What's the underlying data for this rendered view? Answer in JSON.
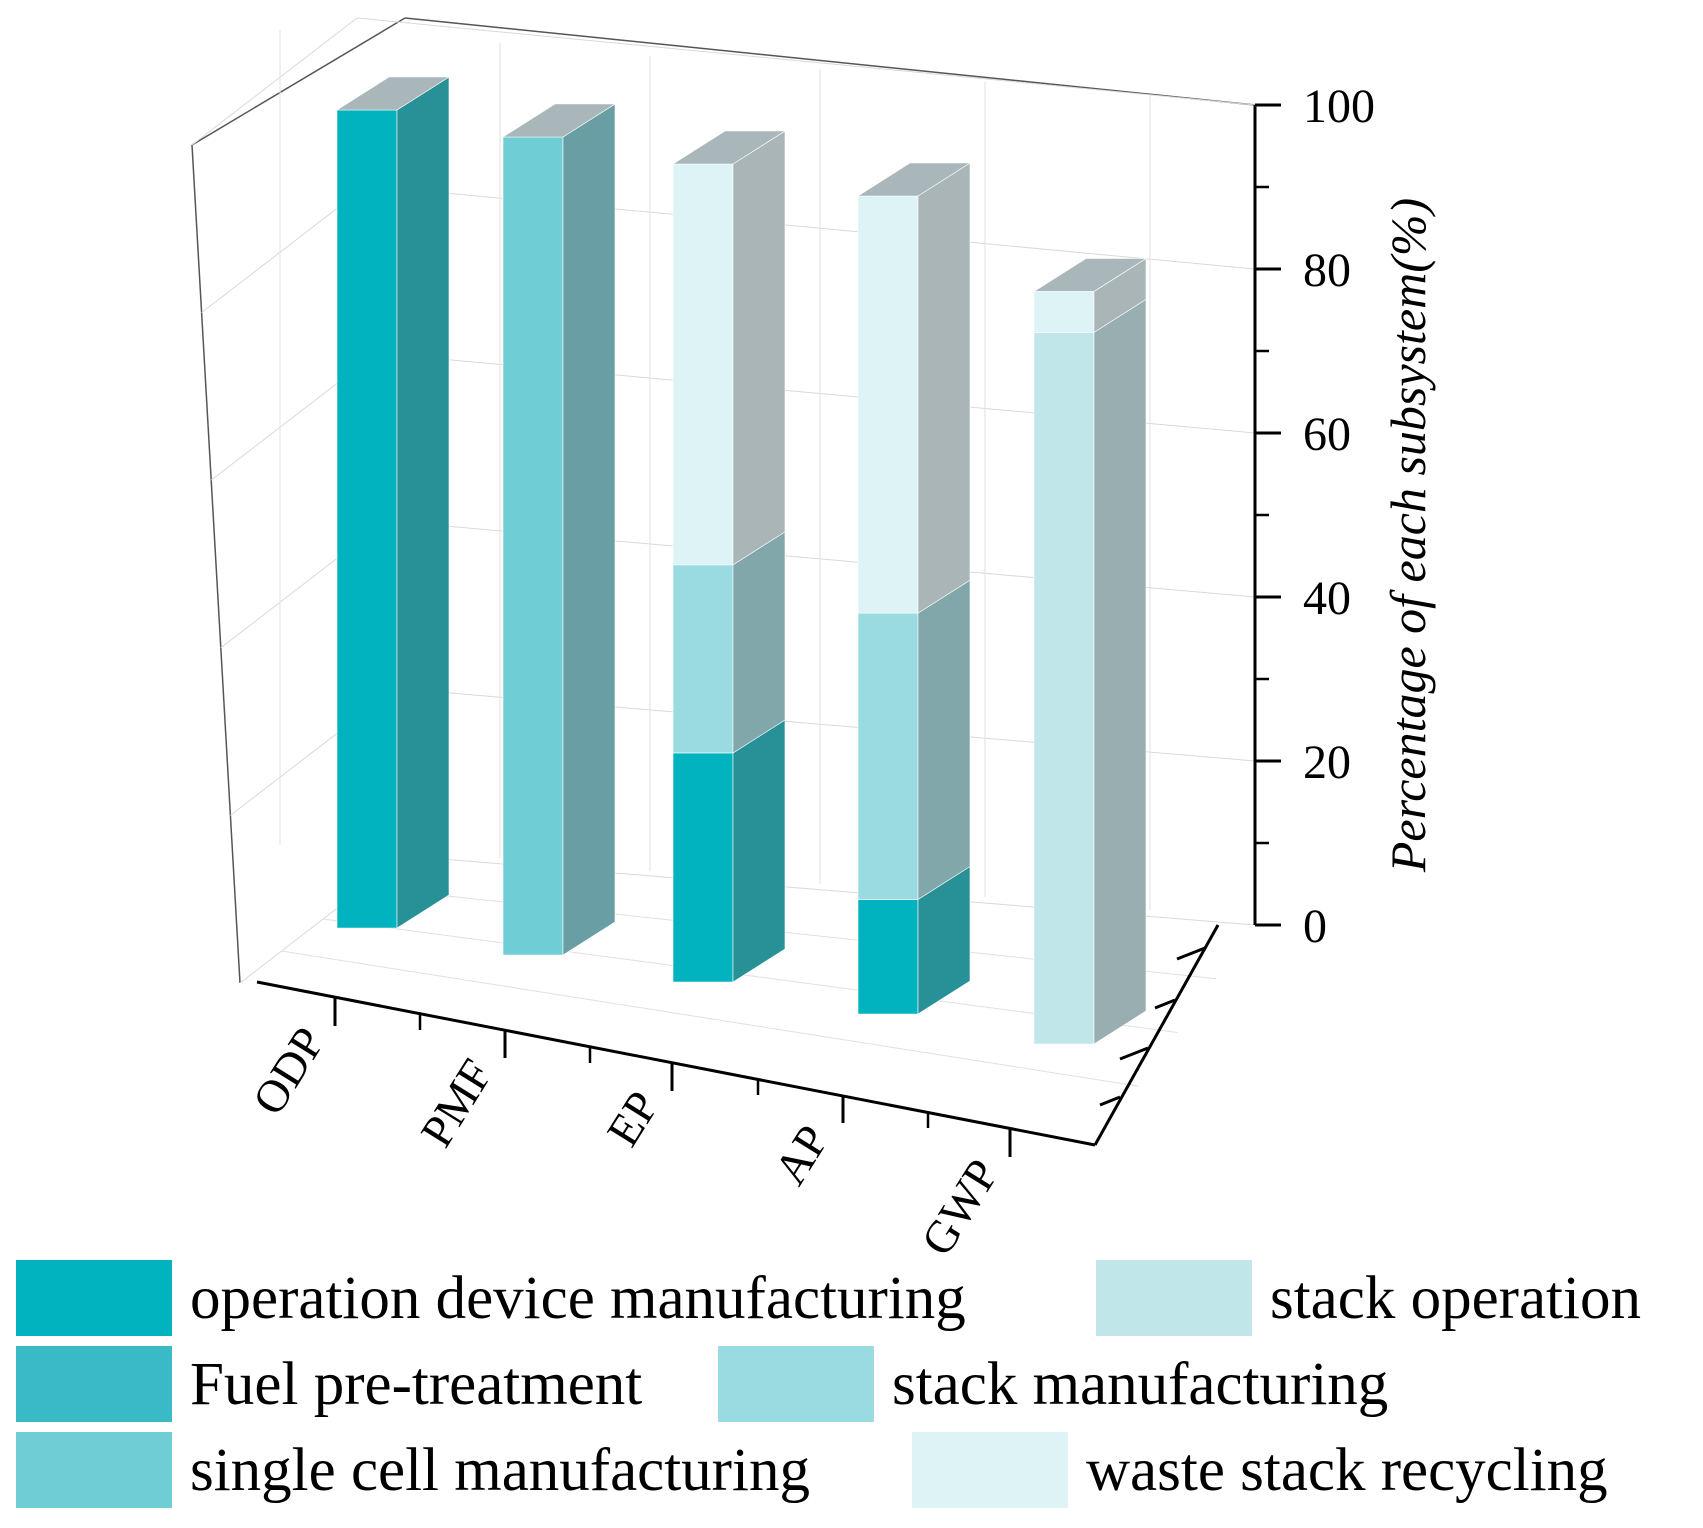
{
  "chart_data": {
    "type": "bar",
    "subtype": "3d-stacked-100-percent",
    "title": "",
    "xlabel": "",
    "ylabel": "Percentage of each subsystem(%)",
    "ylim": [
      0,
      100
    ],
    "yticks": [
      0,
      20,
      40,
      60,
      80,
      100
    ],
    "grid": true,
    "legend_position": "bottom",
    "categories": [
      "ODP",
      "PMF",
      "EP",
      "AP",
      "GWP"
    ],
    "series": [
      {
        "name": "operation device manufacturing",
        "color": "#00b3bf",
        "values": [
          100,
          0,
          28,
          14,
          0
        ]
      },
      {
        "name": "Fuel pre-treatment",
        "color": "#3ab9c6",
        "values": [
          0,
          0,
          0,
          0,
          0
        ]
      },
      {
        "name": "single cell manufacturing",
        "color": "#6fcdd6",
        "values": [
          0,
          100,
          0,
          0,
          0
        ]
      },
      {
        "name": "stack operation",
        "color": "#c0e6ea",
        "values": [
          0,
          0,
          0,
          0,
          87
        ]
      },
      {
        "name": "stack manufacturing",
        "color": "#9adbe2",
        "values": [
          0,
          0,
          23,
          35,
          0
        ]
      },
      {
        "name": "waste stack recycling",
        "color": "#ddf3f5",
        "values": [
          0,
          0,
          49,
          51,
          5
        ]
      }
    ]
  }
}
